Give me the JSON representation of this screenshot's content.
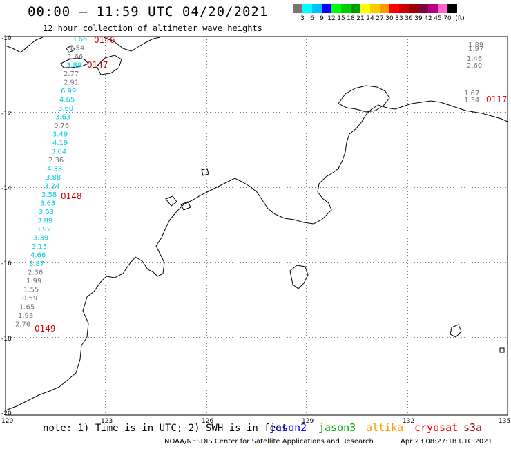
{
  "header": {
    "title": "00:00 – 11:59 UTC 04/20/2021",
    "subtitle": "12 hour collection of altimeter wave heights"
  },
  "legend": {
    "colors": [
      "#777777",
      "#00ffff",
      "#00bfff",
      "#0000ff",
      "#00ff00",
      "#00cc00",
      "#009900",
      "#ffff00",
      "#ffcc00",
      "#ff9900",
      "#ff0000",
      "#cc0000",
      "#990000",
      "#800040",
      "#b0008a",
      "#ff66cc",
      "#000000"
    ],
    "labels": [
      "3",
      "6",
      "9",
      "12",
      "15",
      "18",
      "21",
      "24",
      "27",
      "30",
      "33",
      "36",
      "39",
      "42",
      "45",
      "70",
      "(ft)"
    ]
  },
  "axes": {
    "y_labels": [
      "-10",
      "-12",
      "-14",
      "-16",
      "-18",
      "-20"
    ],
    "x_labels": [
      "120",
      "123",
      "126",
      "129",
      "132",
      "135"
    ]
  },
  "passes": [
    {
      "id": "0146",
      "color": "#cc0000"
    },
    {
      "id": "0147",
      "color": "#cc0000"
    },
    {
      "id": "0148",
      "color": "#cc0000"
    },
    {
      "id": "0149",
      "color": "#cc0000"
    },
    {
      "id": "0117",
      "color": "#ff0000"
    }
  ],
  "track_values": [
    {
      "v": "3.66",
      "c": "#00ccdd"
    },
    {
      "v": "1.54",
      "c": "#777777"
    },
    {
      "v": "1.66",
      "c": "#777777"
    },
    {
      "v": "3.89",
      "c": "#00ccdd"
    },
    {
      "v": "2.77",
      "c": "#777777"
    },
    {
      "v": "2.91",
      "c": "#777777"
    },
    {
      "v": "6.99",
      "c": "#00bbdd"
    },
    {
      "v": "4.65",
      "c": "#00ccdd"
    },
    {
      "v": "3.60",
      "c": "#00ccdd"
    },
    {
      "v": "3.63",
      "c": "#00ccdd"
    },
    {
      "v": "0.76",
      "c": "#777777"
    },
    {
      "v": "3.49",
      "c": "#00ccdd"
    },
    {
      "v": "4.19",
      "c": "#00ccdd"
    },
    {
      "v": "3.04",
      "c": "#00ccdd"
    },
    {
      "v": "2.36",
      "c": "#777777"
    },
    {
      "v": "4.33",
      "c": "#00ccdd"
    },
    {
      "v": "3.88",
      "c": "#00ccdd"
    },
    {
      "v": "3.24",
      "c": "#00ccdd"
    },
    {
      "v": "3.58",
      "c": "#00ccdd"
    },
    {
      "v": "3.63",
      "c": "#00ccdd"
    },
    {
      "v": "3.53",
      "c": "#00ccdd"
    },
    {
      "v": "3.89",
      "c": "#00ccdd"
    },
    {
      "v": "3.92",
      "c": "#00ccdd"
    },
    {
      "v": "3.39",
      "c": "#00ccdd"
    },
    {
      "v": "3.15",
      "c": "#00ccdd"
    },
    {
      "v": "4.66",
      "c": "#00ccdd"
    },
    {
      "v": "3.87",
      "c": "#00ccdd"
    },
    {
      "v": "2.36",
      "c": "#777777"
    },
    {
      "v": "1.99",
      "c": "#777777"
    },
    {
      "v": "1.55",
      "c": "#777777"
    },
    {
      "v": "0.59",
      "c": "#777777"
    },
    {
      "v": "1.65",
      "c": "#777777"
    },
    {
      "v": "1.98",
      "c": "#777777"
    },
    {
      "v": "2.76",
      "c": "#777777"
    }
  ],
  "east_values": [
    {
      "v": "1.89",
      "c": "#777777"
    },
    {
      "v": "1.97",
      "c": "#777777"
    },
    {
      "v": "1.46",
      "c": "#777777"
    },
    {
      "v": "2.60",
      "c": "#777777"
    },
    {
      "v": "1.67",
      "c": "#777777"
    },
    {
      "v": "1.34",
      "c": "#777777"
    }
  ],
  "footer": {
    "note": "note: 1) Time is in UTC; 2) SWH is in feet",
    "satellites": [
      {
        "name": "jason2",
        "color": "#0000ff"
      },
      {
        "name": "jason3",
        "color": "#00aa00"
      },
      {
        "name": "altika",
        "color": "#ff9900"
      },
      {
        "name": "cryosat",
        "color": "#ff0000"
      },
      {
        "name": "s3a",
        "color": "#990000"
      }
    ],
    "credit": "NOAA/NESDIS Center for Satellite Applications and Research",
    "generated": "Apr 23 08:27:18 UTC 2021"
  }
}
